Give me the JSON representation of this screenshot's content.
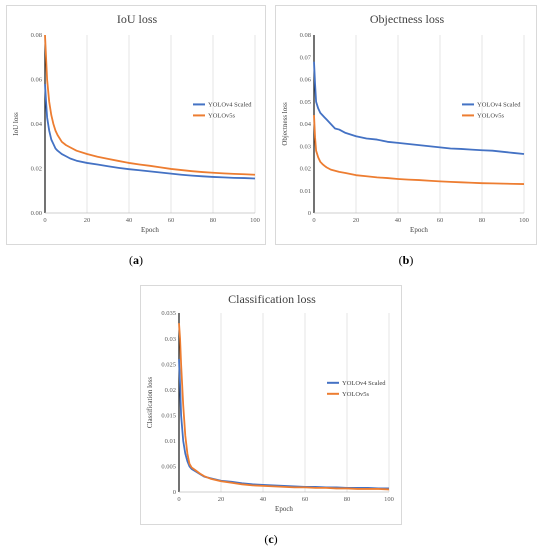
{
  "captions": [
    "a",
    "b",
    "c"
  ],
  "colors": {
    "yolov4": "#4472c4",
    "yolov5": "#ed7d31",
    "grid": "#d9d9d9",
    "axis": "#000000"
  },
  "chart_data": [
    {
      "type": "line",
      "title": "IoU loss",
      "xlabel": "Epoch",
      "ylabel": "IoU loss",
      "xlim": [
        0,
        100
      ],
      "ylim": [
        0,
        0.08
      ],
      "xticks": [
        "0",
        "20",
        "40",
        "60",
        "80",
        "100"
      ],
      "yticks": [
        "0.00",
        "0.02",
        "0.04",
        "0.06",
        "0.08"
      ],
      "grid": "vertical",
      "legend": "right",
      "x": [
        0,
        0.5,
        1,
        2,
        3,
        4,
        5,
        6,
        8,
        10,
        12,
        15,
        20,
        25,
        30,
        35,
        40,
        45,
        50,
        55,
        60,
        65,
        70,
        75,
        80,
        85,
        90,
        95,
        100
      ],
      "series": [
        {
          "name": "YOLOv4 Scaled",
          "values": [
            0.058,
            0.05,
            0.043,
            0.037,
            0.033,
            0.031,
            0.029,
            0.028,
            0.0265,
            0.0255,
            0.0245,
            0.0235,
            0.0225,
            0.0218,
            0.021,
            0.0203,
            0.0197,
            0.0192,
            0.0187,
            0.0182,
            0.0177,
            0.0172,
            0.0168,
            0.0165,
            0.0162,
            0.016,
            0.0158,
            0.0157,
            0.0155
          ]
        },
        {
          "name": "YOLOv5s",
          "values": [
            0.08,
            0.07,
            0.06,
            0.05,
            0.044,
            0.04,
            0.037,
            0.035,
            0.032,
            0.0305,
            0.0295,
            0.028,
            0.0265,
            0.0253,
            0.0243,
            0.0234,
            0.0225,
            0.0218,
            0.0212,
            0.0205,
            0.0198,
            0.0193,
            0.0188,
            0.0184,
            0.0181,
            0.0178,
            0.0176,
            0.0174,
            0.0172
          ]
        }
      ]
    },
    {
      "type": "line",
      "title": "Objectness loss",
      "xlabel": "Epoch",
      "ylabel": "Objectness loss",
      "xlim": [
        0,
        100
      ],
      "ylim": [
        0,
        0.08
      ],
      "xticks": [
        "0",
        "20",
        "40",
        "60",
        "80",
        "100"
      ],
      "yticks": [
        "0",
        "0.01",
        "0.02",
        "0.03",
        "0.04",
        "0.05",
        "0.06",
        "0.07",
        "0.08"
      ],
      "grid": "vertical",
      "legend": "right",
      "x": [
        0,
        0.5,
        1,
        2,
        3,
        4,
        5,
        6,
        8,
        10,
        12,
        15,
        20,
        25,
        30,
        35,
        40,
        45,
        50,
        55,
        60,
        65,
        70,
        75,
        80,
        85,
        90,
        95,
        100
      ],
      "series": [
        {
          "name": "YOLOv4 Scaled",
          "values": [
            0.068,
            0.058,
            0.05,
            0.047,
            0.045,
            0.044,
            0.043,
            0.042,
            0.04,
            0.038,
            0.0375,
            0.036,
            0.0345,
            0.0335,
            0.033,
            0.032,
            0.0315,
            0.031,
            0.0305,
            0.03,
            0.0295,
            0.029,
            0.0288,
            0.0285,
            0.0282,
            0.028,
            0.0275,
            0.027,
            0.0265
          ]
        },
        {
          "name": "YOLOv5s",
          "values": [
            0.044,
            0.034,
            0.028,
            0.025,
            0.023,
            0.022,
            0.0212,
            0.0205,
            0.0195,
            0.019,
            0.0185,
            0.018,
            0.017,
            0.0165,
            0.016,
            0.0157,
            0.0153,
            0.015,
            0.0148,
            0.0145,
            0.0142,
            0.014,
            0.0138,
            0.0136,
            0.0134,
            0.0133,
            0.0132,
            0.0131,
            0.013
          ]
        }
      ]
    },
    {
      "type": "line",
      "title": "Classification loss",
      "xlabel": "Epoch",
      "ylabel": "Classification loss",
      "xlim": [
        0,
        100
      ],
      "ylim": [
        0,
        0.035
      ],
      "xticks": [
        "0",
        "20",
        "40",
        "60",
        "80",
        "100"
      ],
      "yticks": [
        "0",
        "0.005",
        "0.01",
        "0.015",
        "0.02",
        "0.025",
        "0.03",
        "0.035"
      ],
      "grid": "vertical",
      "legend": "right",
      "x": [
        0,
        0.5,
        1,
        2,
        3,
        4,
        5,
        6,
        8,
        10,
        12,
        15,
        20,
        25,
        30,
        35,
        40,
        45,
        50,
        55,
        60,
        65,
        70,
        75,
        80,
        85,
        90,
        95,
        100
      ],
      "series": [
        {
          "name": "YOLOv4 Scaled",
          "values": [
            0.026,
            0.021,
            0.015,
            0.01,
            0.0075,
            0.006,
            0.005,
            0.0045,
            0.004,
            0.0035,
            0.003,
            0.0027,
            0.0022,
            0.002,
            0.0017,
            0.0015,
            0.0014,
            0.0013,
            0.0012,
            0.0011,
            0.001,
            0.001,
            0.0009,
            0.0009,
            0.0008,
            0.0008,
            0.0008,
            0.0007,
            0.0007
          ]
        },
        {
          "name": "YOLOv5s",
          "values": [
            0.033,
            0.03,
            0.025,
            0.017,
            0.011,
            0.0075,
            0.0055,
            0.0048,
            0.0042,
            0.0036,
            0.0031,
            0.0026,
            0.0021,
            0.0018,
            0.0015,
            0.0013,
            0.0012,
            0.0011,
            0.001,
            0.0009,
            0.0009,
            0.0008,
            0.0008,
            0.0007,
            0.0007,
            0.0006,
            0.0006,
            0.0006,
            0.0005
          ]
        }
      ]
    }
  ]
}
